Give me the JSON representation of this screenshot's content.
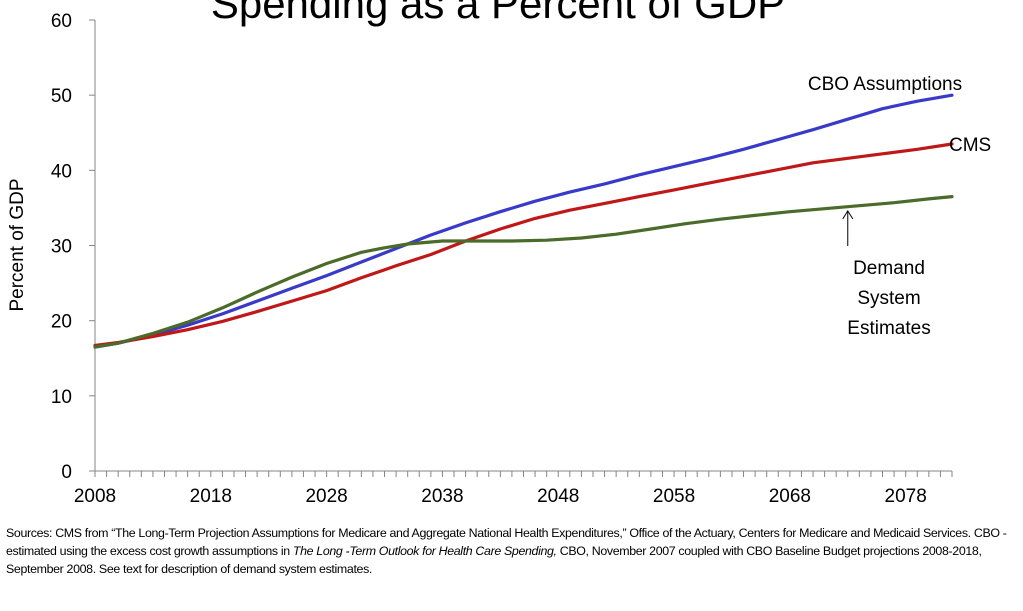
{
  "chart_data": {
    "type": "line",
    "title": "Spending as a Percent of GDP",
    "ylabel": "Percent of GDP",
    "xlabel": "",
    "xlim": [
      2008,
      2082
    ],
    "ylim": [
      0,
      60
    ],
    "y_ticks": [
      0,
      10,
      20,
      30,
      40,
      50,
      60
    ],
    "x_tick_labels": [
      "2008",
      "2018",
      "2028",
      "2038",
      "2048",
      "2058",
      "2068",
      "2078"
    ],
    "grid": false,
    "legend": "none (series labeled directly on chart)",
    "series": [
      {
        "name": "CBO Assumptions",
        "color": "#3a3ac8",
        "x": [
          2008,
          2010,
          2013,
          2016,
          2019,
          2022,
          2025,
          2028,
          2031,
          2034,
          2037,
          2040,
          2043,
          2046,
          2049,
          2052,
          2055,
          2058,
          2061,
          2064,
          2067,
          2070,
          2073,
          2076,
          2079,
          2082
        ],
        "y": [
          16.5,
          17.0,
          18.1,
          19.4,
          20.9,
          22.6,
          24.3,
          26.0,
          27.8,
          29.6,
          31.4,
          33.0,
          34.5,
          35.9,
          37.1,
          38.2,
          39.4,
          40.5,
          41.6,
          42.8,
          44.1,
          45.4,
          46.8,
          48.2,
          49.2,
          50.0
        ]
      },
      {
        "name": "CMS",
        "color": "#c01818",
        "x": [
          2008,
          2010,
          2013,
          2016,
          2019,
          2022,
          2025,
          2028,
          2031,
          2034,
          2037,
          2040,
          2043,
          2046,
          2049,
          2052,
          2055,
          2058,
          2061,
          2064,
          2067,
          2070,
          2073,
          2076,
          2079,
          2082
        ],
        "y": [
          16.7,
          17.1,
          17.9,
          18.8,
          19.9,
          21.2,
          22.6,
          24.0,
          25.7,
          27.3,
          28.8,
          30.6,
          32.2,
          33.6,
          34.7,
          35.6,
          36.5,
          37.4,
          38.3,
          39.2,
          40.1,
          41.0,
          41.6,
          42.2,
          42.8,
          43.5
        ]
      },
      {
        "name": "Demand System Estimates",
        "color": "#4a6b2a",
        "x": [
          2008,
          2010,
          2013,
          2016,
          2019,
          2022,
          2025,
          2028,
          2031,
          2033,
          2035,
          2038,
          2041,
          2044,
          2047,
          2050,
          2053,
          2056,
          2059,
          2062,
          2065,
          2068,
          2071,
          2074,
          2077,
          2080,
          2082
        ],
        "y": [
          16.5,
          17.0,
          18.3,
          19.8,
          21.7,
          23.8,
          25.8,
          27.6,
          29.1,
          29.7,
          30.2,
          30.6,
          30.6,
          30.6,
          30.7,
          31.0,
          31.5,
          32.2,
          32.9,
          33.5,
          34.0,
          34.5,
          34.9,
          35.3,
          35.7,
          36.2,
          36.5
        ]
      }
    ],
    "annotations": [
      {
        "text": "CBO Assumptions",
        "series": "CBO Assumptions"
      },
      {
        "text": "CMS",
        "series": "CMS"
      },
      {
        "lines": [
          "Demand",
          "System",
          "Estimates"
        ],
        "series": "Demand System Estimates",
        "arrow_to": [
          2073,
          35.4
        ]
      }
    ]
  },
  "sources": {
    "prefix": "Sources: CMS from “The Long-Term Projection Assumptions for Medicare and Aggregate National Health Expenditures,” Office of the Actuary, Centers for Medicare and Medicaid Services. CBO - estimated using the excess cost growth assumptions in ",
    "italic_title": "The Long -Term Outlook for Health Care Spending,",
    "suffix": " CBO, November 2007  coupled with CBO Baseline Budget projections 2008-2018,  September 2008.  See text for description of demand system estimates."
  }
}
